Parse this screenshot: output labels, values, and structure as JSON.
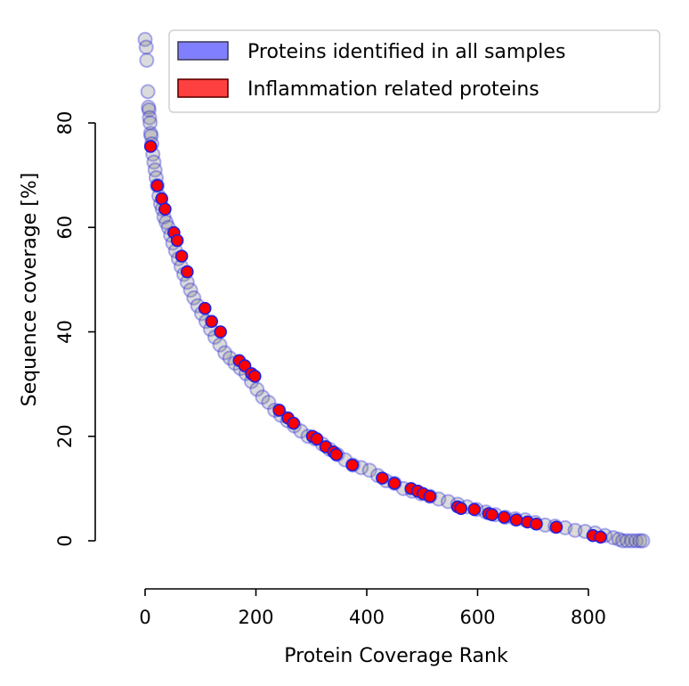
{
  "chart_data": {
    "type": "scatter",
    "title": "",
    "xlabel": "Protein Coverage Rank",
    "ylabel": "Sequence coverage [%]",
    "xlim": [
      0,
      900
    ],
    "ylim": [
      -9.5,
      97
    ],
    "x_ticks": [
      0,
      200,
      400,
      600,
      800
    ],
    "y_ticks": [
      0,
      20,
      40,
      60,
      80
    ],
    "grid": false,
    "legend_position": "top-right",
    "series": [
      {
        "name": "Proteins identified in all samples",
        "fill_color": "#8080ff",
        "edge_color": "#2020e0",
        "x": [
          0,
          2,
          3,
          5,
          6,
          7,
          8,
          9,
          10,
          11,
          12,
          14,
          16,
          18,
          20,
          22,
          25,
          28,
          31,
          34,
          38,
          42,
          46,
          50,
          55,
          60,
          65,
          70,
          76,
          82,
          88,
          95,
          102,
          110,
          118,
          126,
          135,
          144,
          153,
          162,
          172,
          182,
          192,
          202,
          212,
          223,
          234,
          245,
          257,
          269,
          281,
          294,
          307,
          320,
          333,
          347,
          361,
          375,
          390,
          405,
          420,
          435,
          450,
          466,
          482,
          498,
          514,
          530,
          547,
          564,
          581,
          598,
          615,
          632,
          650,
          668,
          686,
          704,
          722,
          740,
          758,
          776,
          794,
          812,
          830,
          845,
          855,
          862,
          870,
          878,
          886,
          893,
          898
        ],
        "y": [
          96,
          94.5,
          92,
          86,
          83,
          82.5,
          81,
          80,
          78,
          77.5,
          76,
          74,
          72.5,
          71,
          69.5,
          68,
          66,
          64.5,
          63.5,
          62,
          61,
          60,
          58.5,
          57,
          55.5,
          54,
          52.5,
          51,
          49.5,
          48,
          46.5,
          45,
          43.5,
          42,
          40.5,
          39,
          37.5,
          36,
          35,
          34,
          33,
          32,
          30.5,
          29,
          27.5,
          26.5,
          25,
          24,
          23,
          22,
          21,
          20,
          19.5,
          18.5,
          17.5,
          16.5,
          15.5,
          14.5,
          14,
          13.5,
          12.5,
          11.5,
          11,
          10,
          9.5,
          9,
          8.5,
          8,
          7.5,
          7,
          6.5,
          6,
          5.5,
          5,
          4.5,
          4.2,
          4,
          3.5,
          3,
          2.8,
          2.5,
          2,
          1.8,
          1.5,
          1,
          0.6,
          0.3,
          0,
          0,
          0,
          0,
          0,
          0
        ]
      },
      {
        "name": "Inflammation related proteins",
        "fill_color": "#ff0000",
        "edge_color": "#2020e0",
        "x": [
          10,
          22,
          30,
          36,
          52,
          58,
          66,
          76,
          108,
          120,
          136,
          170,
          180,
          192,
          198,
          242,
          258,
          268,
          302,
          310,
          326,
          340,
          345,
          374,
          428,
          450,
          480,
          492,
          502,
          514,
          564,
          570,
          594,
          620,
          626,
          648,
          670,
          690,
          706,
          742,
          808,
          822
        ],
        "y": [
          75.5,
          68,
          65.5,
          63.5,
          59,
          57.5,
          54.5,
          51.5,
          44.5,
          42,
          40,
          34.5,
          33.5,
          32,
          31.5,
          25,
          23.5,
          22.5,
          20,
          19.5,
          18,
          17,
          16.5,
          14.5,
          12,
          11,
          10,
          9.5,
          9,
          8.5,
          6.5,
          6.2,
          6,
          5.2,
          5,
          4.5,
          4,
          3.6,
          3.2,
          2.6,
          1,
          0.7
        ]
      }
    ]
  }
}
